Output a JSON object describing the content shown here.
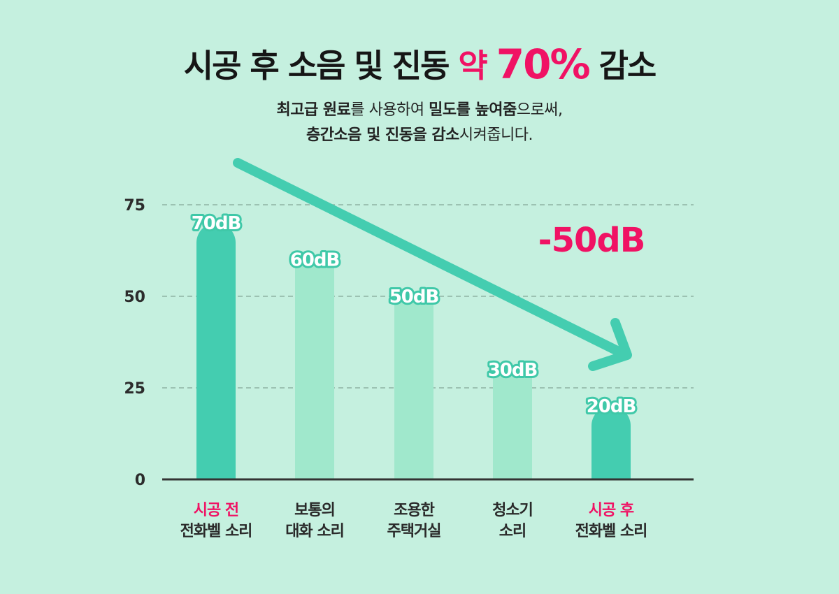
{
  "title": {
    "main": "시공 후 소음 및 진동",
    "accent_small": "약",
    "accent_big": "70%",
    "end": "감소"
  },
  "subtitle": {
    "l1_b1": "최고급 원료",
    "l1_t1": "를 사용하여 ",
    "l1_b2": "밀도를 높여줌",
    "l1_t2": "으로써,",
    "l2_b1": "층간소음 및 진동을 감소",
    "l2_t1": "시켜줍니다."
  },
  "chart_data": {
    "type": "bar",
    "categories": [
      [
        "시공 전",
        "전화벨 소리"
      ],
      [
        "보통의",
        "대화 소리"
      ],
      [
        "조용한",
        "주택거실"
      ],
      [
        "청소기",
        "소리"
      ],
      [
        "시공 후",
        "전화벨 소리"
      ]
    ],
    "values": [
      70,
      60,
      50,
      30,
      20
    ],
    "value_labels": [
      "70dB",
      "60dB",
      "50dB",
      "30dB",
      "20dB"
    ],
    "highlight": [
      true,
      false,
      false,
      false,
      true
    ],
    "yticks": [
      0,
      25,
      50,
      75
    ],
    "ylim": [
      0,
      75
    ],
    "annotation": "-50dB",
    "grid": "dashed horizontal",
    "colors": {
      "bar_main": "#44cdb0",
      "bar_light": "#a0e8cc",
      "arrow": "#44cdb0",
      "accent": "#f01264",
      "grid": "#8fb3a4",
      "axis": "#333333"
    }
  }
}
